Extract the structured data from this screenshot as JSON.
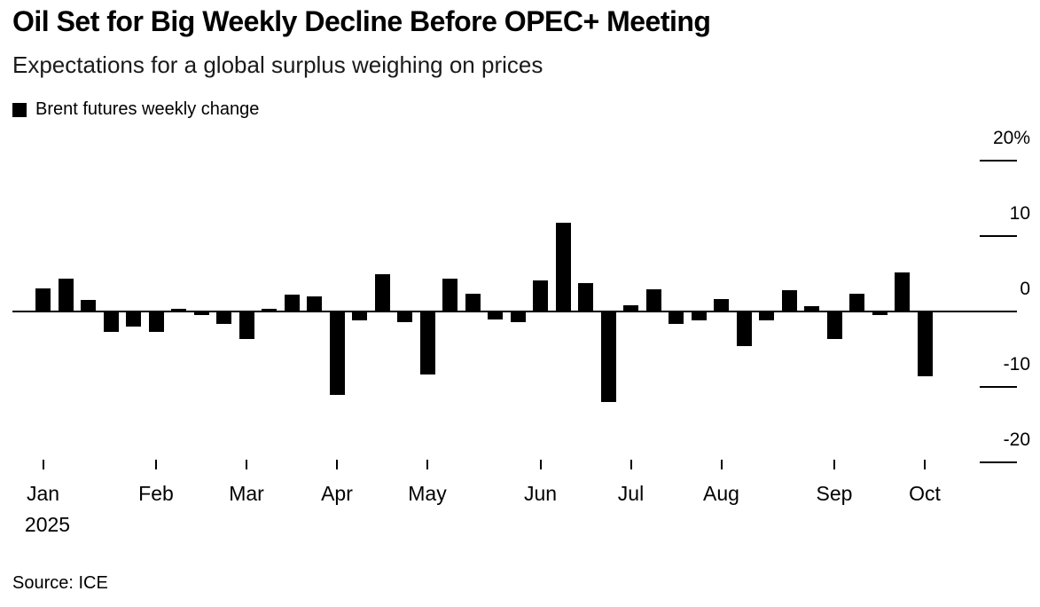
{
  "header": {
    "title": "Oil Set for Big Weekly Decline Before OPEC+ Meeting",
    "subtitle": "Expectations for a global surplus weighing on prices"
  },
  "legend": {
    "label": "Brent futures weekly change",
    "swatch_color": "#000000"
  },
  "source": "Source: ICE",
  "colors": {
    "bar": "#000000",
    "axis_line": "#000000",
    "tick": "#000000",
    "background": "#ffffff",
    "text": "#000000"
  },
  "chart_data": {
    "type": "bar",
    "series_name": "Brent futures weekly change",
    "unit": "%",
    "title": "Oil Set for Big Weekly Decline Before OPEC+ Meeting",
    "subtitle": "Expectations for a global surplus weighing on prices",
    "grid": false,
    "legend_position": "top-left",
    "values": [
      3.1,
      4.4,
      1.5,
      -2.7,
      -2.0,
      -2.7,
      0.3,
      -0.5,
      -1.6,
      -3.7,
      0.4,
      2.2,
      2.0,
      -11.0,
      -1.2,
      5.0,
      -1.4,
      -8.3,
      4.4,
      2.3,
      -1.0,
      -1.4,
      4.1,
      11.8,
      3.8,
      -12.0,
      0.8,
      2.9,
      -1.6,
      -1.2,
      1.7,
      -4.6,
      -1.2,
      2.8,
      0.7,
      -3.7,
      2.4,
      -0.5,
      5.2,
      -8.6
    ],
    "x_axis": {
      "tick_labels": [
        "Jan",
        "Feb",
        "Mar",
        "Apr",
        "May",
        "Jun",
        "Jul",
        "Aug",
        "Sep",
        "Oct"
      ],
      "tick_week_indices": [
        0,
        5,
        9,
        13,
        17,
        22,
        26,
        30,
        35,
        39
      ],
      "year_label": "2025"
    },
    "y_axis": {
      "tick_labels": [
        "20%",
        "10",
        "0",
        "-10",
        "-20"
      ],
      "tick_values": [
        20,
        10,
        0,
        -10,
        -20
      ],
      "range": [
        -20,
        20
      ]
    }
  }
}
